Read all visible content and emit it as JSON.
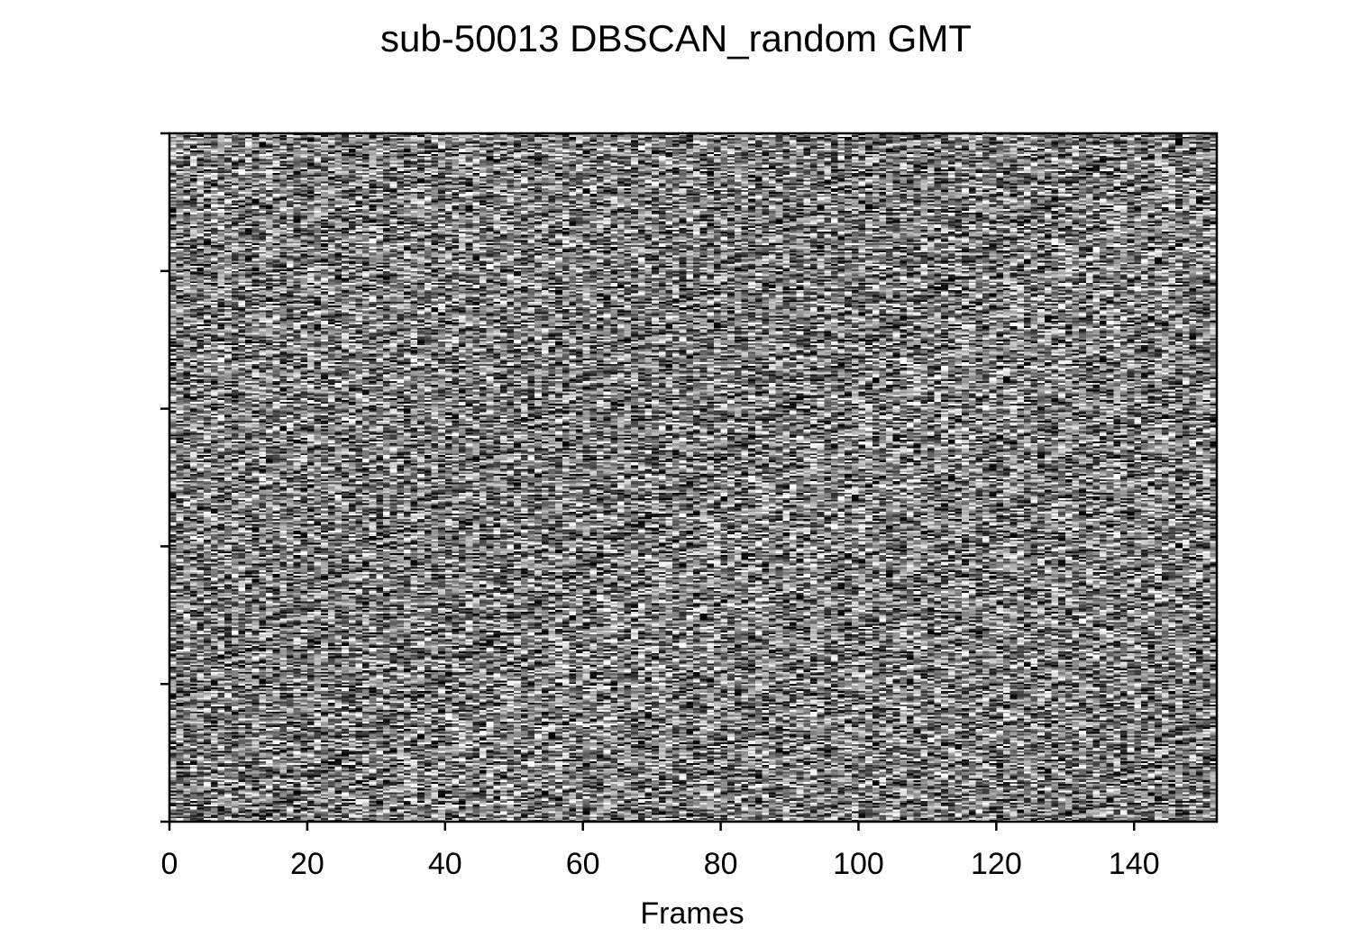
{
  "chart_data": {
    "type": "heatmap",
    "title": "sub-50013 DBSCAN_random GMT",
    "xlabel": "Frames",
    "ylabel": "",
    "colormap": "gray",
    "xlim": [
      0,
      152
    ],
    "x_ticks": [
      0,
      20,
      40,
      60,
      80,
      100,
      120,
      140
    ],
    "x_tick_labels": [
      "0",
      "20",
      "40",
      "60",
      "80",
      "100",
      "120",
      "140"
    ],
    "y_tick_count": 6,
    "y_tick_labels_visible": false,
    "n_frames": 152,
    "n_rows": 400,
    "value_range": [
      0,
      1
    ],
    "pattern": "random noise"
  }
}
